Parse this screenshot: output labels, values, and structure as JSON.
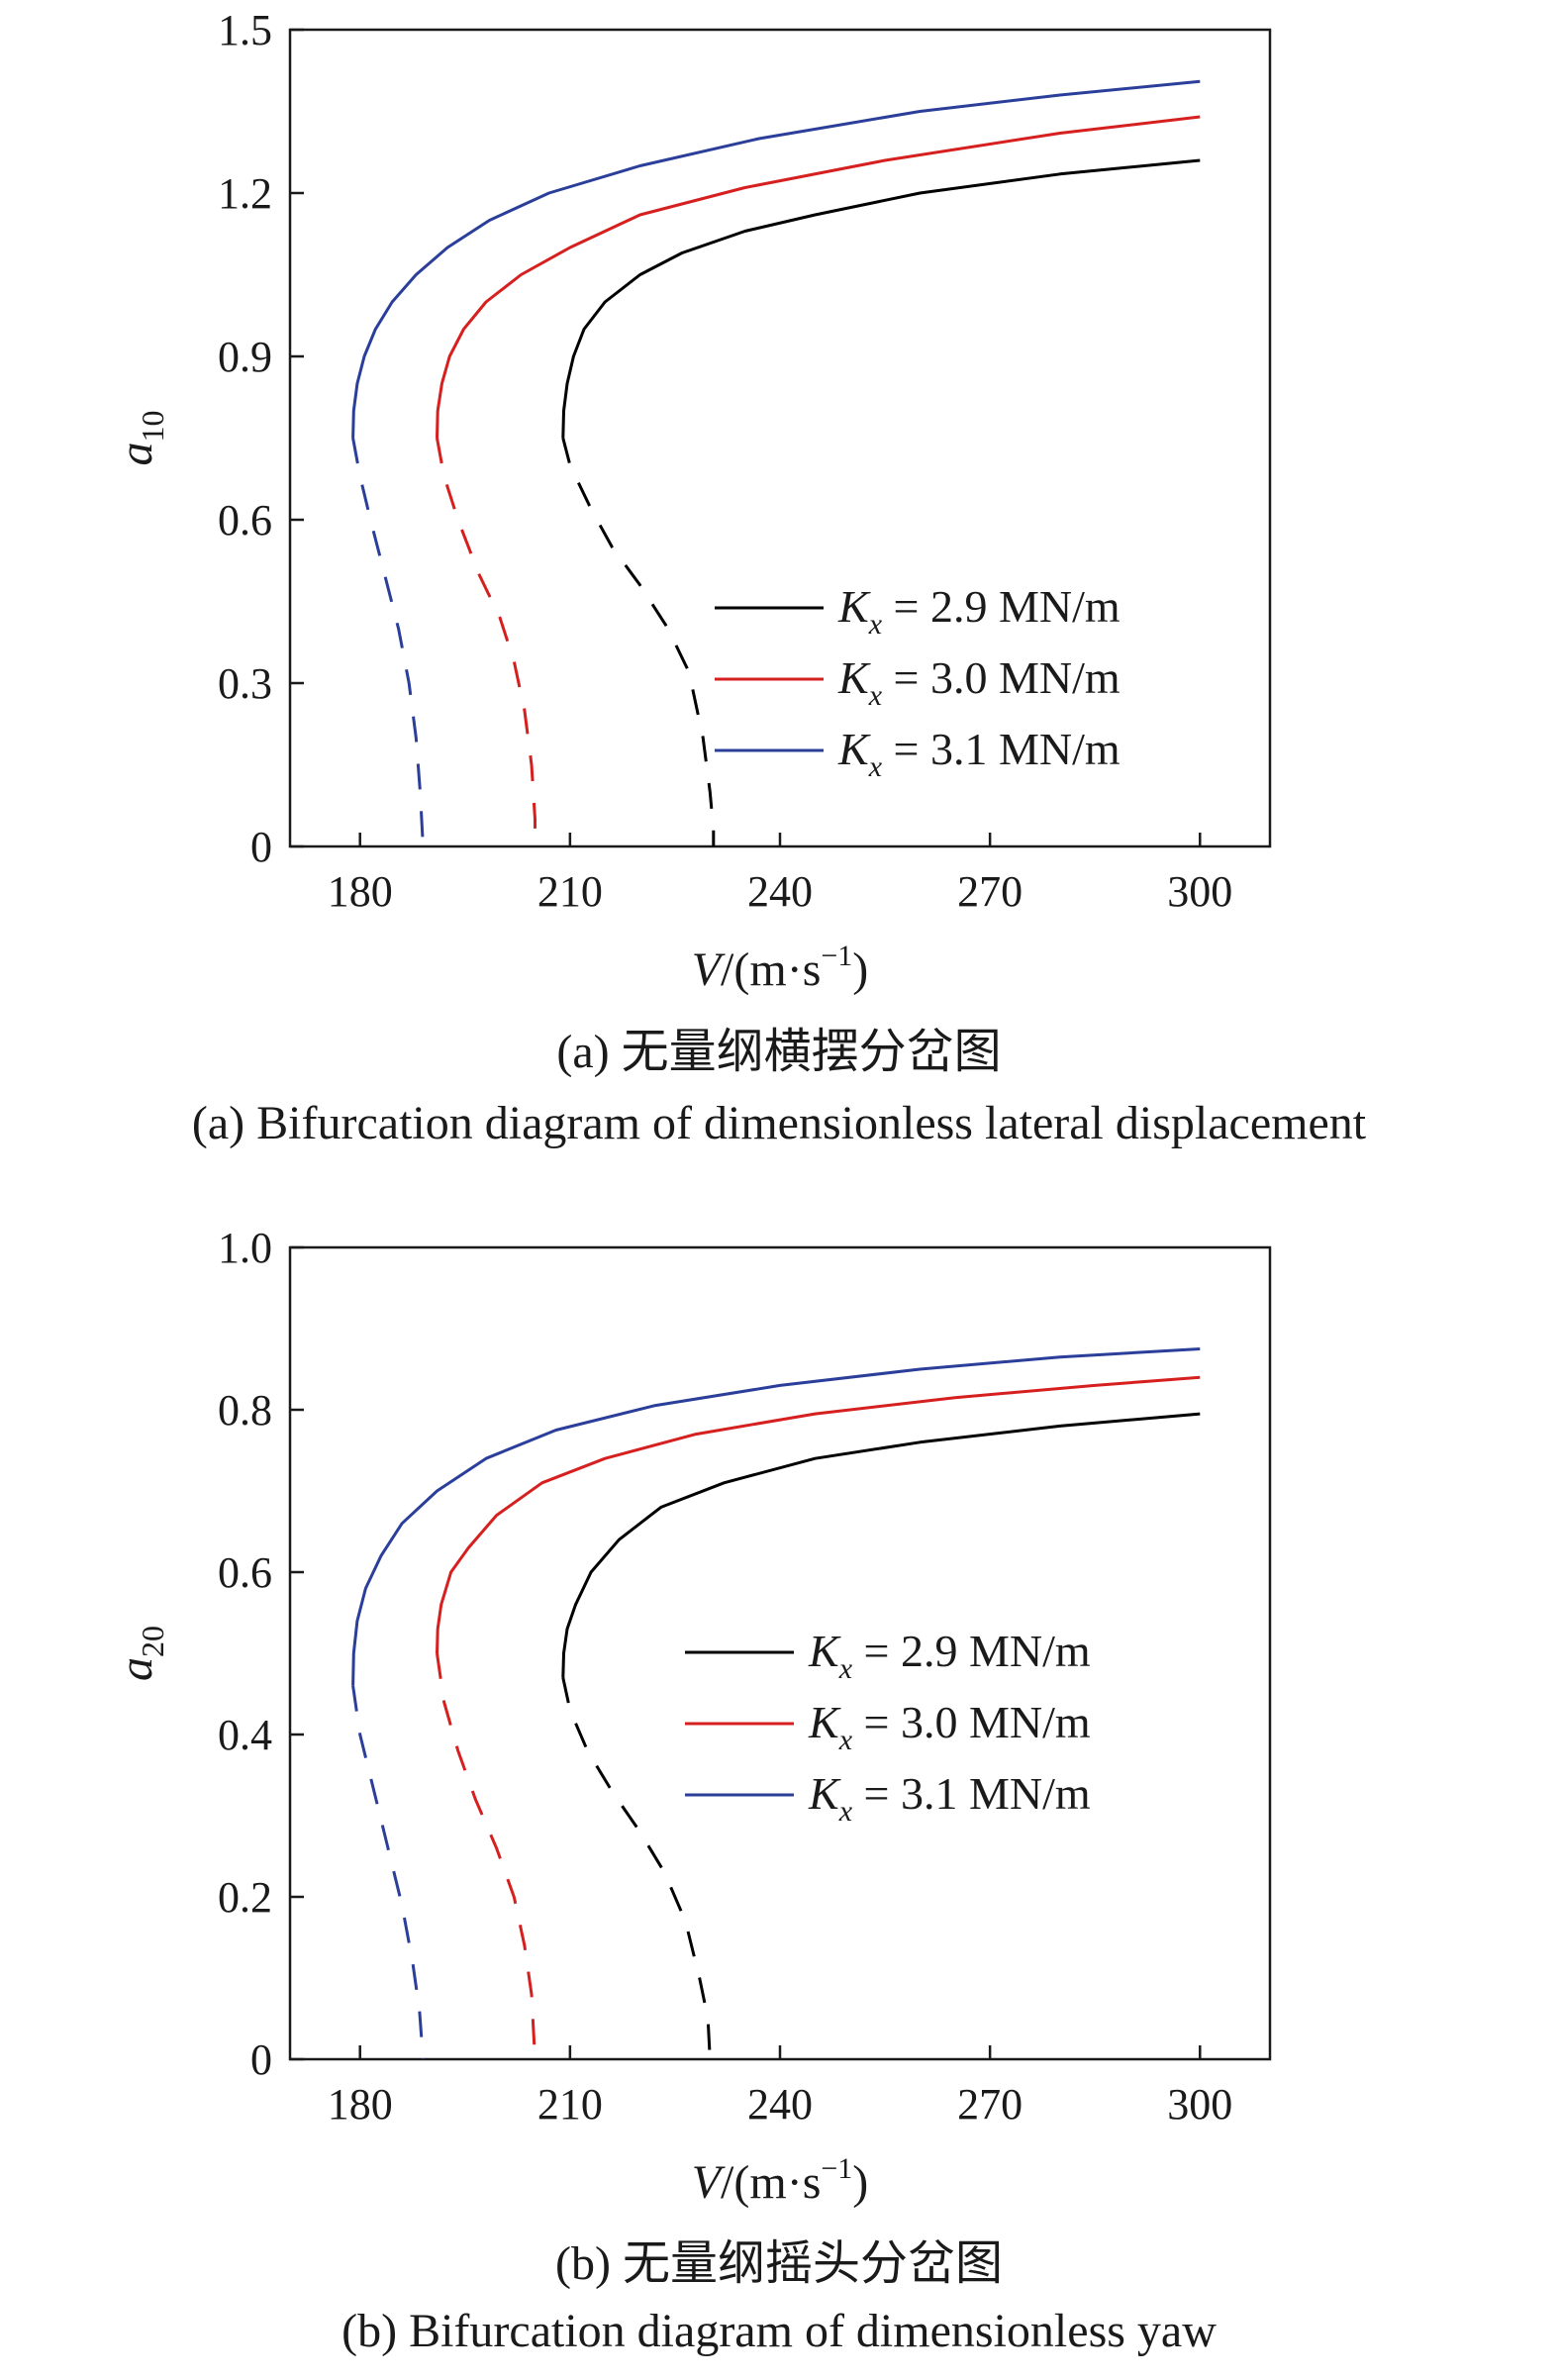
{
  "chart_data": [
    {
      "type": "line",
      "ylabel_main": "a",
      "ylabel_sub": "10",
      "xlabel_main": "V",
      "xlabel_unit": "/(m·s",
      "xlabel_sup": "−1",
      "xlabel_close": ")",
      "xlim": [
        170,
        310
      ],
      "ylim": [
        0,
        1.5
      ],
      "xticks": [
        180,
        210,
        240,
        270,
        300
      ],
      "yticks": [
        0,
        0.3,
        0.6,
        0.9,
        1.2,
        1.5
      ],
      "ytick_labels": [
        "0",
        "0.3",
        "0.6",
        "0.9",
        "1.2",
        "1.5"
      ],
      "legend_position": "lower-right",
      "grid": false,
      "caption_cn": "(a) 无量纲横摆分岔图",
      "caption_en": "(a) Bifurcation diagram of dimensionless lateral displacement",
      "series": [
        {
          "name_symbol": "K",
          "name_sub": "x",
          "name_value": " = 2.9 MN/m",
          "color": "#000000",
          "stable": [
            [
              209.0,
              0.75
            ],
            [
              209.1,
              0.8
            ],
            [
              209.6,
              0.85
            ],
            [
              210.5,
              0.9
            ],
            [
              212.0,
              0.95
            ],
            [
              215.0,
              1.0
            ],
            [
              220.0,
              1.05
            ],
            [
              226.0,
              1.09
            ],
            [
              235.0,
              1.13
            ],
            [
              245.0,
              1.16
            ],
            [
              260.0,
              1.2
            ],
            [
              280.0,
              1.235
            ],
            [
              300.0,
              1.26
            ]
          ],
          "unstable": [
            [
              209.0,
              0.75
            ],
            [
              210.0,
              0.7
            ],
            [
              213.0,
              0.62
            ],
            [
              216.0,
              0.55
            ],
            [
              220.0,
              0.48
            ],
            [
              224.0,
              0.4
            ],
            [
              227.0,
              0.32
            ],
            [
              229.0,
              0.2
            ],
            [
              230.0,
              0.1
            ],
            [
              230.5,
              0.03
            ],
            [
              230.5,
              0.0
            ]
          ]
        },
        {
          "name_symbol": "K",
          "name_sub": "x",
          "name_value": " = 3.0 MN/m",
          "color": "#d62020",
          "stable": [
            [
              191.0,
              0.75
            ],
            [
              191.1,
              0.8
            ],
            [
              191.7,
              0.85
            ],
            [
              192.8,
              0.9
            ],
            [
              194.8,
              0.95
            ],
            [
              198.0,
              1.0
            ],
            [
              203.0,
              1.05
            ],
            [
              210.0,
              1.1
            ],
            [
              220.0,
              1.16
            ],
            [
              235.0,
              1.21
            ],
            [
              255.0,
              1.26
            ],
            [
              280.0,
              1.31
            ],
            [
              300.0,
              1.34
            ]
          ],
          "unstable": [
            [
              191.0,
              0.75
            ],
            [
              192.0,
              0.68
            ],
            [
              194.0,
              0.6
            ],
            [
              197.0,
              0.5
            ],
            [
              200.0,
              0.42
            ],
            [
              202.0,
              0.34
            ],
            [
              203.5,
              0.25
            ],
            [
              204.5,
              0.15
            ],
            [
              205.0,
              0.05
            ],
            [
              205.0,
              0.0
            ]
          ]
        },
        {
          "name_symbol": "K",
          "name_sub": "x",
          "name_value": " = 3.1 MN/m",
          "color": "#2b3f9a",
          "stable": [
            [
              179.0,
              0.75
            ],
            [
              179.1,
              0.8
            ],
            [
              179.6,
              0.85
            ],
            [
              180.6,
              0.9
            ],
            [
              182.2,
              0.95
            ],
            [
              184.6,
              1.0
            ],
            [
              188.0,
              1.05
            ],
            [
              192.5,
              1.1
            ],
            [
              198.5,
              1.15
            ],
            [
              207.0,
              1.2
            ],
            [
              220.0,
              1.25
            ],
            [
              237.0,
              1.3
            ],
            [
              260.0,
              1.35
            ],
            [
              280.0,
              1.38
            ],
            [
              300.0,
              1.405
            ]
          ],
          "unstable": [
            [
              179.0,
              0.75
            ],
            [
              180.0,
              0.68
            ],
            [
              181.5,
              0.6
            ],
            [
              183.5,
              0.5
            ],
            [
              185.5,
              0.4
            ],
            [
              187.0,
              0.3
            ],
            [
              188.0,
              0.2
            ],
            [
              188.6,
              0.1
            ],
            [
              189.0,
              0.0
            ]
          ]
        }
      ]
    },
    {
      "type": "line",
      "ylabel_main": "a",
      "ylabel_sub": "20",
      "xlabel_main": "V",
      "xlabel_unit": "/(m·s",
      "xlabel_sup": "−1",
      "xlabel_close": ")",
      "xlim": [
        170,
        310
      ],
      "ylim": [
        0,
        1.0
      ],
      "xticks": [
        180,
        210,
        240,
        270,
        300
      ],
      "yticks": [
        0,
        0.2,
        0.4,
        0.6,
        0.8,
        1.0
      ],
      "ytick_labels": [
        "0",
        "0.2",
        "0.4",
        "0.6",
        "0.8",
        "1.0"
      ],
      "legend_position": "lower-right",
      "grid": false,
      "caption_cn": "(b) 无量纲摇头分岔图",
      "caption_en": "(b) Bifurcation diagram of dimensionless yaw",
      "series": [
        {
          "name_symbol": "K",
          "name_sub": "x",
          "name_value": " = 2.9 MN/m",
          "color": "#000000",
          "stable": [
            [
              209.0,
              0.47
            ],
            [
              209.1,
              0.5
            ],
            [
              209.6,
              0.53
            ],
            [
              210.8,
              0.56
            ],
            [
              213.0,
              0.6
            ],
            [
              217.0,
              0.64
            ],
            [
              223.0,
              0.68
            ],
            [
              232.0,
              0.71
            ],
            [
              245.0,
              0.74
            ],
            [
              260.0,
              0.76
            ],
            [
              280.0,
              0.78
            ],
            [
              300.0,
              0.795
            ]
          ],
          "unstable": [
            [
              209.0,
              0.47
            ],
            [
              210.0,
              0.43
            ],
            [
              212.5,
              0.38
            ],
            [
              216.0,
              0.33
            ],
            [
              220.0,
              0.28
            ],
            [
              223.5,
              0.23
            ],
            [
              226.5,
              0.17
            ],
            [
              228.5,
              0.1
            ],
            [
              229.7,
              0.05
            ],
            [
              230.0,
              0.0
            ]
          ]
        },
        {
          "name_symbol": "K",
          "name_sub": "x",
          "name_value": " = 3.0 MN/m",
          "color": "#d62020",
          "stable": [
            [
              191.0,
              0.5
            ],
            [
              191.1,
              0.53
            ],
            [
              191.6,
              0.56
            ],
            [
              193.0,
              0.6
            ],
            [
              195.5,
              0.63
            ],
            [
              199.5,
              0.67
            ],
            [
              206.0,
              0.71
            ],
            [
              215.0,
              0.74
            ],
            [
              228.0,
              0.77
            ],
            [
              245.0,
              0.795
            ],
            [
              265.0,
              0.815
            ],
            [
              285.0,
              0.83
            ],
            [
              300.0,
              0.84
            ]
          ],
          "unstable": [
            [
              191.0,
              0.5
            ],
            [
              192.0,
              0.44
            ],
            [
              194.0,
              0.38
            ],
            [
              196.5,
              0.32
            ],
            [
              199.5,
              0.26
            ],
            [
              202.0,
              0.2
            ],
            [
              203.5,
              0.14
            ],
            [
              204.5,
              0.08
            ],
            [
              205.0,
              0.0
            ]
          ]
        },
        {
          "name_symbol": "K",
          "name_sub": "x",
          "name_value": " = 3.1 MN/m",
          "color": "#2b3f9a",
          "stable": [
            [
              179.0,
              0.46
            ],
            [
              179.1,
              0.5
            ],
            [
              179.6,
              0.54
            ],
            [
              180.8,
              0.58
            ],
            [
              183.0,
              0.62
            ],
            [
              186.0,
              0.66
            ],
            [
              191.0,
              0.7
            ],
            [
              198.0,
              0.74
            ],
            [
              208.0,
              0.775
            ],
            [
              222.0,
              0.805
            ],
            [
              240.0,
              0.83
            ],
            [
              260.0,
              0.85
            ],
            [
              280.0,
              0.865
            ],
            [
              300.0,
              0.875
            ]
          ],
          "unstable": [
            [
              179.0,
              0.46
            ],
            [
              180.0,
              0.4
            ],
            [
              182.0,
              0.33
            ],
            [
              184.0,
              0.26
            ],
            [
              186.0,
              0.19
            ],
            [
              187.5,
              0.12
            ],
            [
              188.5,
              0.06
            ],
            [
              189.0,
              0.0
            ]
          ]
        }
      ]
    }
  ]
}
